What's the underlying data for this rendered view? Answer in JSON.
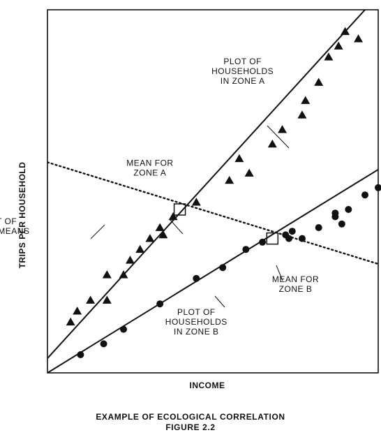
{
  "chart_data": {
    "type": "scatter",
    "xlabel": "INCOME",
    "ylabel": "TRIPS PER HOUSEHOLD",
    "xlim": [
      0,
      100
    ],
    "ylim": [
      0,
      100
    ],
    "grid": false,
    "series": [
      {
        "name": "PLOT OF HOUSEHOLDS IN ZONE A",
        "marker": "triangle",
        "points": [
          [
            7,
            14
          ],
          [
            9,
            17
          ],
          [
            13,
            20
          ],
          [
            18,
            20
          ],
          [
            18,
            27
          ],
          [
            23,
            27
          ],
          [
            25,
            31
          ],
          [
            28,
            34
          ],
          [
            31,
            37
          ],
          [
            34,
            40
          ],
          [
            35,
            38
          ],
          [
            38,
            43
          ],
          [
            45,
            47
          ],
          [
            55,
            53
          ],
          [
            58,
            59
          ],
          [
            61,
            55
          ],
          [
            68,
            63
          ],
          [
            71,
            67
          ],
          [
            77,
            71
          ],
          [
            78,
            75
          ],
          [
            82,
            80
          ],
          [
            85,
            87
          ],
          [
            88,
            90
          ],
          [
            94,
            92
          ],
          [
            90,
            94
          ]
        ]
      },
      {
        "name": "PLOT OF HOUSEHOLDS IN ZONE B",
        "marker": "circle",
        "points": [
          [
            10,
            5
          ],
          [
            17,
            8
          ],
          [
            23,
            12
          ],
          [
            34,
            19
          ],
          [
            45,
            26
          ],
          [
            53,
            29
          ],
          [
            60,
            34
          ],
          [
            65,
            36
          ],
          [
            72,
            38
          ],
          [
            73,
            37
          ],
          [
            74,
            39
          ],
          [
            77,
            37
          ],
          [
            82,
            40
          ],
          [
            87,
            43
          ],
          [
            87,
            44
          ],
          [
            89,
            41
          ],
          [
            91,
            45
          ],
          [
            96,
            49
          ],
          [
            100,
            51
          ]
        ]
      }
    ],
    "lines": [
      {
        "name": "zone-a-fit",
        "from": [
          0,
          4
        ],
        "to": [
          100,
          104
        ]
      },
      {
        "name": "zone-b-fit",
        "from": [
          0,
          0
        ],
        "to": [
          100,
          56
        ]
      },
      {
        "name": "zonal-means",
        "dashed": true,
        "from": [
          0,
          58
        ],
        "to": [
          100,
          30
        ]
      }
    ],
    "means": [
      {
        "name": "mean-zone-a",
        "point": [
          40,
          45
        ]
      },
      {
        "name": "mean-zone-b",
        "point": [
          68,
          37
        ]
      }
    ],
    "annotations": [
      {
        "name": "zone-a-households-label",
        "lines": [
          "PLOT OF",
          "HOUSEHOLDS",
          "IN ZONE A"
        ],
        "anchor": [
          59,
          85
        ]
      },
      {
        "name": "mean-zone-a-label",
        "lines": [
          "MEAN FOR",
          "ZONE A"
        ],
        "anchor": [
          31,
          57
        ]
      },
      {
        "name": "zonal-means-label",
        "lines": [
          "PLOT OF",
          "ZONAL MEANS"
        ],
        "anchor": [
          -15,
          41
        ]
      },
      {
        "name": "mean-zone-b-label",
        "lines": [
          "MEAN FOR",
          "ZONE B"
        ],
        "anchor": [
          75,
          25
        ]
      },
      {
        "name": "zone-b-households-label",
        "lines": [
          "PLOT OF",
          "HOUSEHOLDS",
          "IN ZONE B"
        ],
        "anchor": [
          45,
          16
        ]
      }
    ]
  },
  "caption": {
    "line1": "EXAMPLE OF ECOLOGICAL CORRELATION",
    "line2": "FIGURE 2.2"
  }
}
